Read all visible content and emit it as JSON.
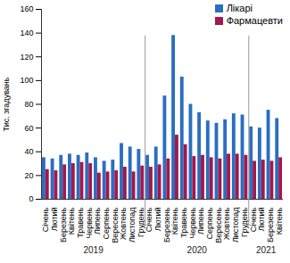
{
  "chart_data": {
    "type": "bar",
    "y_label": "Тис. згадувань",
    "categories": [
      "Січень",
      "Лютий",
      "Березень",
      "Квітень",
      "Травень",
      "Червень",
      "Липень",
      "Серпень",
      "Вересень",
      "Жовтень",
      "Листопад",
      "Грудень",
      "Січень",
      "Лютий",
      "Березень",
      "Квітень",
      "Травень",
      "Червень",
      "Липень",
      "Серпень",
      "Вересень",
      "Жовтень",
      "Листопад",
      "Грудень",
      "Січень",
      "Лютий",
      "Березень",
      "Квітень"
    ],
    "x_groups": [
      "2019",
      "2019",
      "2019",
      "2019",
      "2019",
      "2019",
      "2019",
      "2019",
      "2019",
      "2019",
      "2019",
      "2019",
      "2020",
      "2020",
      "2020",
      "2020",
      "2020",
      "2020",
      "2020",
      "2020",
      "2020",
      "2020",
      "2020",
      "2020",
      "2021",
      "2021",
      "2021",
      "2021"
    ],
    "series": [
      {
        "name": "Лікарі",
        "color": "#2a6fc0",
        "values": [
          35,
          34,
          37,
          38,
          37,
          39,
          35,
          32,
          33,
          47,
          44,
          42,
          37,
          44,
          87,
          138,
          103,
          80,
          73,
          66,
          64,
          67,
          72,
          71,
          61,
          60,
          75,
          68
        ]
      },
      {
        "name": "Фармацевти",
        "color": "#a3174f",
        "values": [
          25,
          24,
          29,
          30,
          31,
          30,
          22,
          23,
          24,
          27,
          23,
          28,
          27,
          29,
          34,
          54,
          46,
          36,
          37,
          35,
          34,
          38,
          38,
          37,
          32,
          33,
          32,
          35
        ]
      }
    ],
    "ylim": [
      0,
      160
    ],
    "yticks": [
      0,
      20,
      40,
      60,
      80,
      100,
      120,
      140,
      160
    ],
    "grid": false,
    "legend": "top-right"
  }
}
